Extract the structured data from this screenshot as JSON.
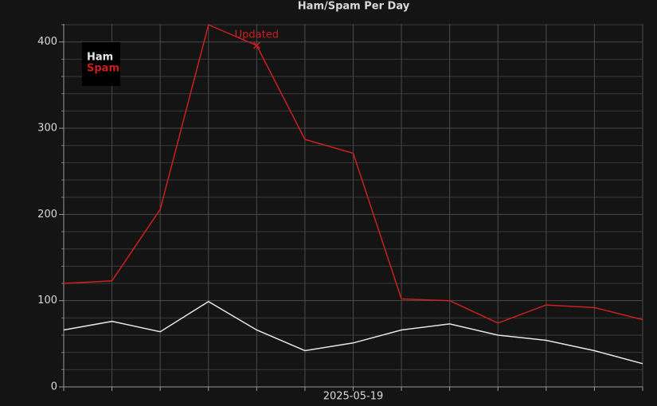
{
  "chart_data": {
    "type": "line",
    "title": "Ham/Spam Per Day",
    "categories": [
      null,
      null,
      null,
      null,
      null,
      null,
      "2025-05-19",
      null,
      null,
      null,
      null,
      null,
      null
    ],
    "series": [
      {
        "name": "Ham",
        "color": "#e6e6e6",
        "values": [
          66,
          76,
          64,
          99,
          66,
          42,
          51,
          66,
          73,
          60,
          54,
          42,
          27
        ]
      },
      {
        "name": "Spam",
        "color": "#cc1f1f",
        "values": [
          120,
          123,
          206,
          420,
          396,
          287,
          271,
          102,
          100,
          74,
          95,
          92,
          78
        ]
      }
    ],
    "ylim": [
      0,
      421
    ],
    "yticks": [
      0,
      100,
      200,
      300,
      400
    ],
    "yminor_ticks": [
      20,
      40,
      60,
      80,
      120,
      140,
      160,
      180,
      220,
      240,
      260,
      280,
      320,
      340,
      360,
      380,
      420
    ],
    "grid": true,
    "legend": "top-left",
    "annotation": {
      "text": "Updated",
      "category_index": 4,
      "series_index": 1
    }
  }
}
